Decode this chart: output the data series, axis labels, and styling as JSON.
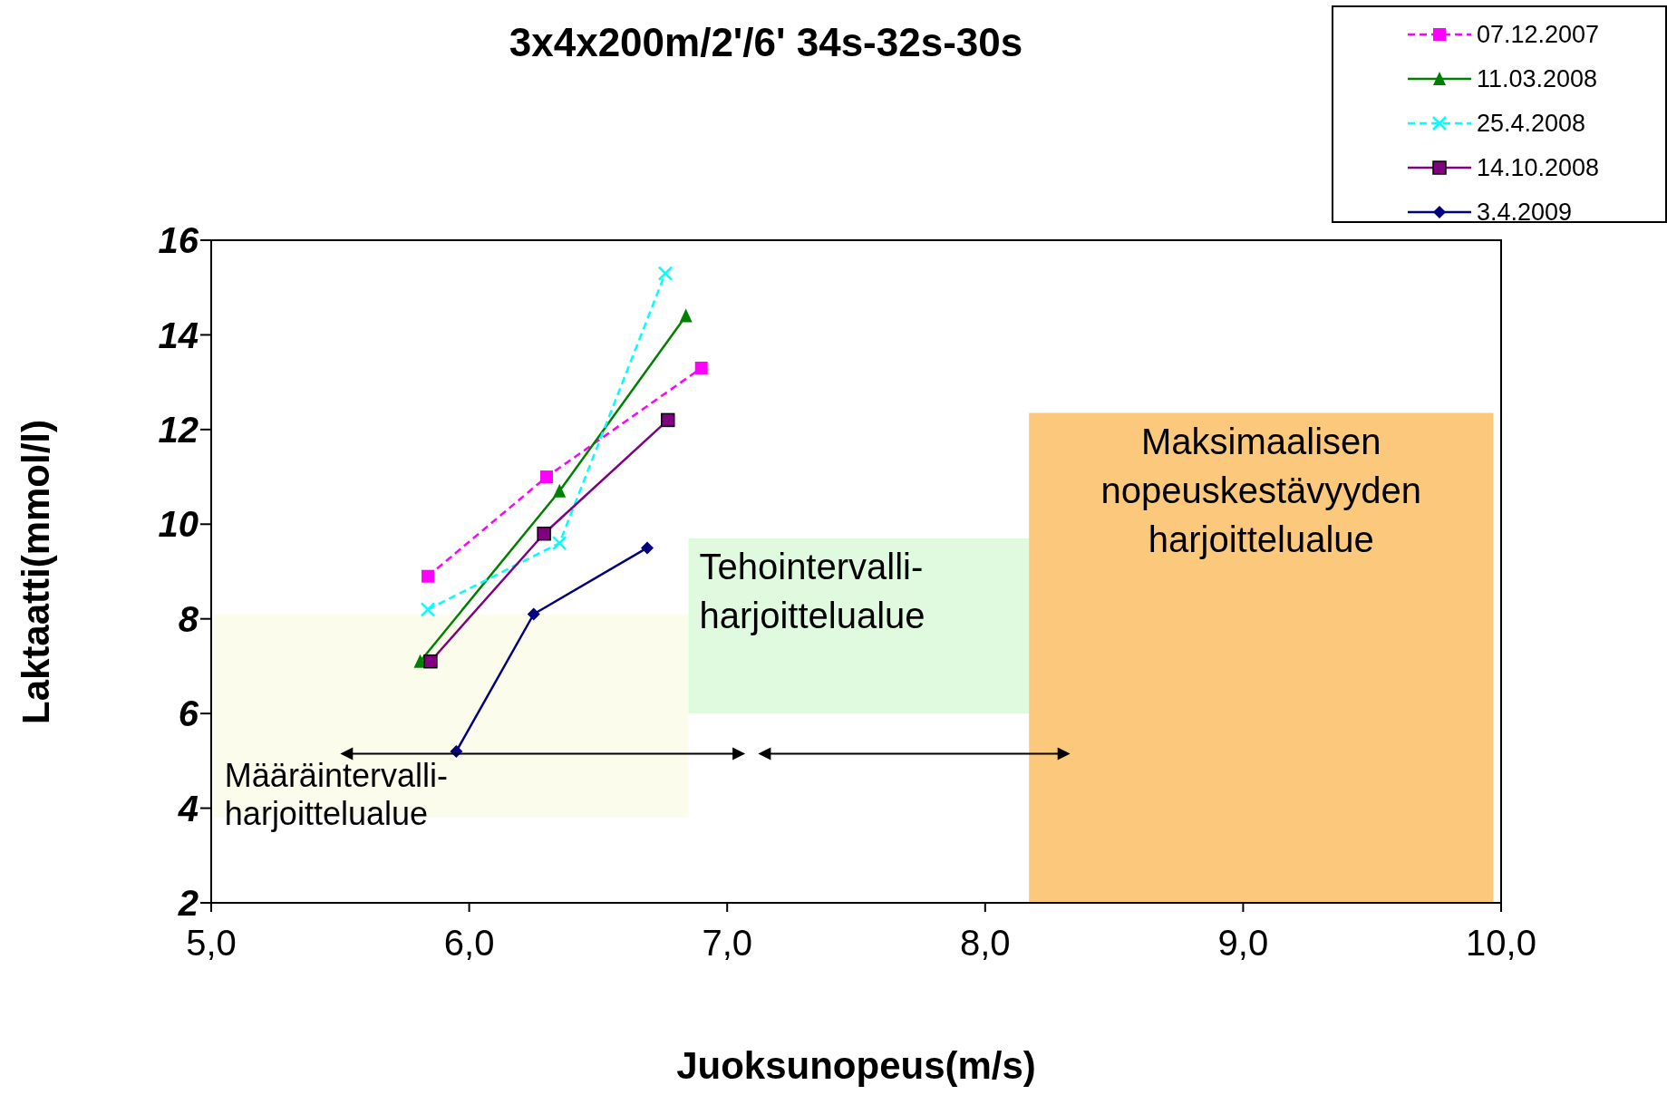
{
  "chart_data": {
    "type": "line",
    "title": "3x4x200m/2'/6' 34s-32s-30s",
    "xlabel": "Juoksunopeus(m/s)",
    "ylabel": "Laktaatti(mmol/l)",
    "xlim": [
      5,
      10
    ],
    "xticks": [
      {
        "value": 5,
        "label": "5,0"
      },
      {
        "value": 6,
        "label": "6,0"
      },
      {
        "value": 7,
        "label": "7,0"
      },
      {
        "value": 8,
        "label": "8,0"
      },
      {
        "value": 9,
        "label": "9,0"
      },
      {
        "value": 10,
        "label": "10,0"
      }
    ],
    "ylim": [
      2,
      16
    ],
    "yticks": [
      2,
      4,
      6,
      8,
      10,
      12,
      14,
      16
    ],
    "grid": false,
    "legend": "top right",
    "series": [
      {
        "name": "07.12.2007",
        "color": "#ff00ff",
        "x": [
          5.84,
          6.3,
          6.9
        ],
        "values": [
          8.9,
          11.0,
          13.3
        ],
        "marker": "square",
        "line_style": "dashed"
      },
      {
        "name": "11.03.2008",
        "color": "#008000",
        "x": [
          5.81,
          6.35,
          6.84
        ],
        "values": [
          7.1,
          10.7,
          14.4
        ],
        "marker": "triangle",
        "line_style": "solid"
      },
      {
        "name": "25.4.2008",
        "color": "#00ffff",
        "x": [
          5.84,
          6.35,
          6.76
        ],
        "values": [
          8.2,
          9.6,
          15.3
        ],
        "marker": "cross",
        "line_style": "dashed"
      },
      {
        "name": "14.10.2008",
        "color": "#800080",
        "x": [
          5.85,
          6.29,
          6.77
        ],
        "values": [
          7.1,
          9.8,
          12.2
        ],
        "marker": "square",
        "line_style": "solid"
      },
      {
        "name": "3.4.2009",
        "color": "#000080",
        "x": [
          5.95,
          6.25,
          6.69
        ],
        "values": [
          5.2,
          8.1,
          9.5
        ],
        "marker": "diamond",
        "line_style": "solid"
      }
    ],
    "bands": [
      {
        "axis": "x",
        "from": 5.01,
        "to": 6.85,
        "label": "Määräintervalli-\nharjoittelualue",
        "color": "#fcfcec"
      },
      {
        "axis": "x",
        "from": 6.85,
        "to": 8.2,
        "label": "Tehointervalli-\nharjoittelualue",
        "color": "#e0fae0"
      },
      {
        "axis": "x",
        "from": 8.17,
        "to": 9.97,
        "label": "Maksimaalisen\nnopeuskestävyyden\nharjoittelualue",
        "color": "#fcc97c"
      }
    ]
  }
}
